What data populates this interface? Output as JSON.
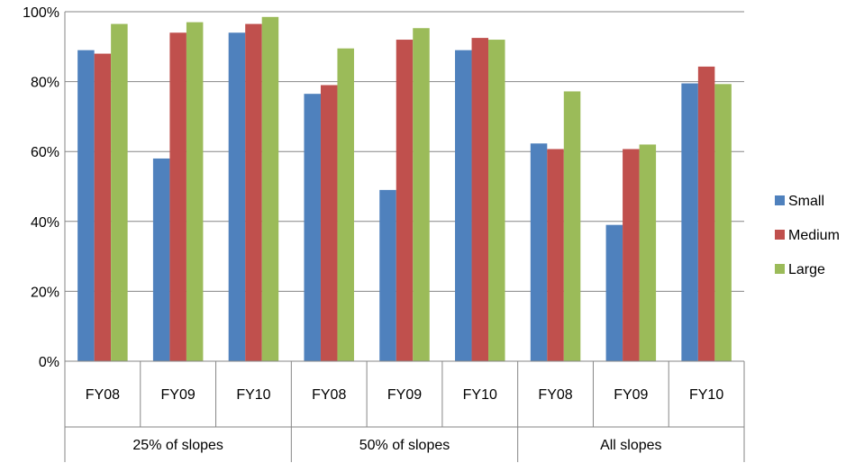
{
  "chart_data": {
    "type": "bar",
    "title": "",
    "xlabel": "",
    "ylabel": "",
    "ylim": [
      0,
      100
    ],
    "y_ticks": [
      0,
      20,
      40,
      60,
      80,
      100
    ],
    "y_tick_labels": [
      "0%",
      "20%",
      "40%",
      "60%",
      "80%",
      "100%"
    ],
    "grid": true,
    "legend_position": "right",
    "groups": [
      {
        "label": "25% of slopes",
        "categories": [
          "FY08",
          "FY09",
          "FY10"
        ]
      },
      {
        "label": "50% of slopes",
        "categories": [
          "FY08",
          "FY09",
          "FY10"
        ]
      },
      {
        "label": "All slopes",
        "categories": [
          "FY08",
          "FY09",
          "FY10"
        ]
      }
    ],
    "categories": [
      "FY08",
      "FY09",
      "FY10",
      "FY08",
      "FY09",
      "FY10",
      "FY08",
      "FY09",
      "FY10"
    ],
    "series": [
      {
        "name": "Small",
        "color": "#4f81bd",
        "values": [
          89,
          58,
          94,
          76.5,
          49,
          89,
          62.3,
          39,
          79.5
        ]
      },
      {
        "name": "Medium",
        "color": "#c0504d",
        "values": [
          88,
          94,
          96.5,
          79,
          92,
          92.5,
          60.7,
          60.7,
          84.3
        ]
      },
      {
        "name": "Large",
        "color": "#9bbb59",
        "values": [
          96.5,
          97,
          98.5,
          89.5,
          95.3,
          92,
          77.2,
          62,
          79.3
        ]
      }
    ]
  }
}
